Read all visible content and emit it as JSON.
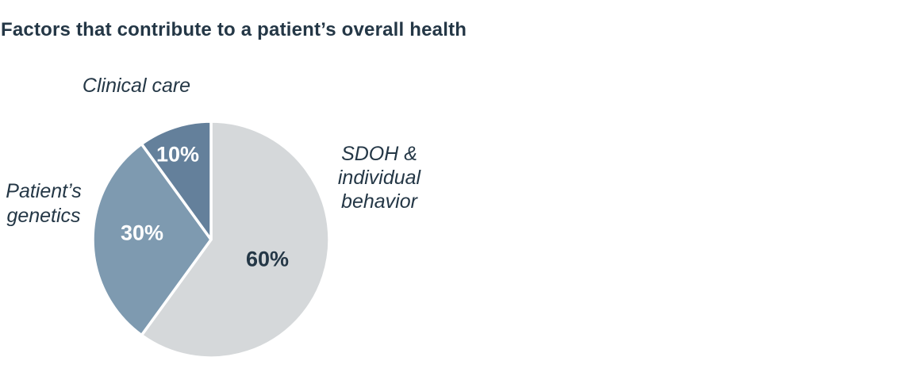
{
  "title": "Factors that contribute to a patient’s overall health",
  "colors": {
    "background": "#ffffff",
    "text": "#243746",
    "slice_separator": "#ffffff"
  },
  "chart_data": {
    "type": "pie",
    "title": "Factors that contribute to a patient’s overall health",
    "start_angle": "12-o'clock",
    "direction": "clockwise",
    "units": "percent",
    "legend_position": "outside-labels-around-pie",
    "slices": [
      {
        "label": "SDOH & individual behavior",
        "value": 60,
        "pct_label": "60%",
        "color": "#d5d8da",
        "pct_label_color": "#243746"
      },
      {
        "label": "Patient’s genetics",
        "value": 30,
        "pct_label": "30%",
        "color": "#7e9ab0",
        "pct_label_color": "#ffffff"
      },
      {
        "label": "Clinical care",
        "value": 10,
        "pct_label": "10%",
        "color": "#64809b",
        "pct_label_color": "#ffffff"
      }
    ]
  },
  "labels": {
    "clinical_care": "Clinical care",
    "patients_genetics": {
      "line1": "Patient’s",
      "line2": "genetics"
    },
    "sdoh": {
      "line1": "SDOH &",
      "line2": "individual",
      "line3": "behavior"
    }
  }
}
